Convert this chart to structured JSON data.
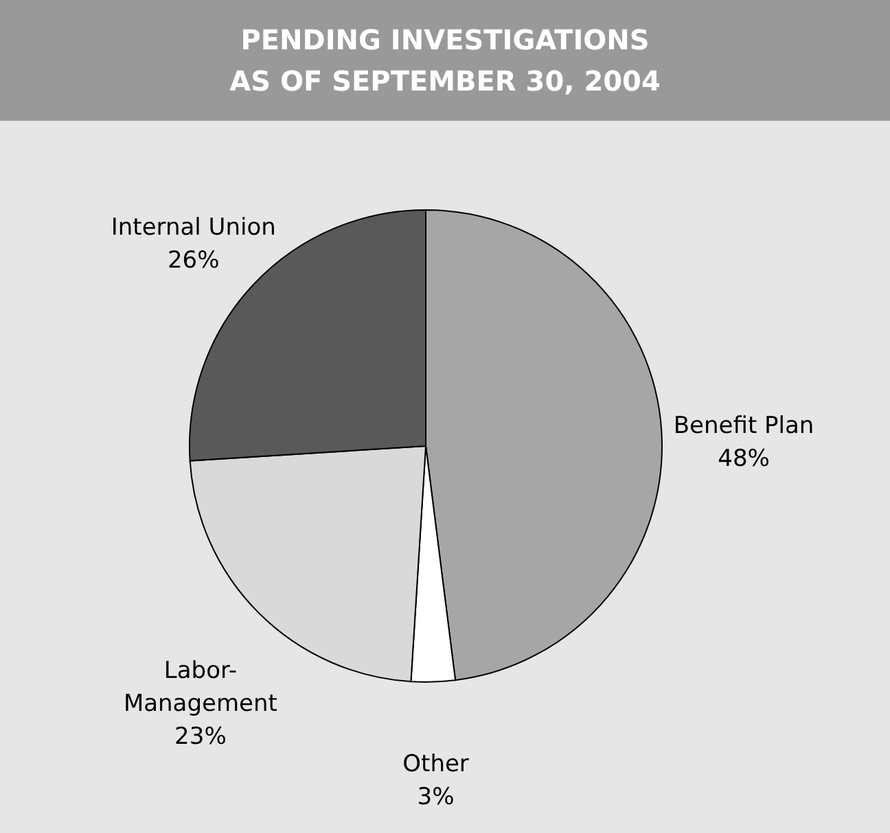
{
  "chart_data": {
    "type": "pie",
    "title": "PENDING INVESTIGATIONS\nAS OF SEPTEMBER 30, 2004",
    "categories": [
      "Benefit Plan",
      "Other",
      "Labor-Management",
      "Internal Union"
    ],
    "values": [
      48,
      3,
      23,
      26
    ],
    "value_labels": [
      "48%",
      "3%",
      "23%",
      "26%"
    ],
    "colors": [
      "#a6a6a6",
      "#ffffff",
      "#d9d9d9",
      "#595959"
    ]
  }
}
